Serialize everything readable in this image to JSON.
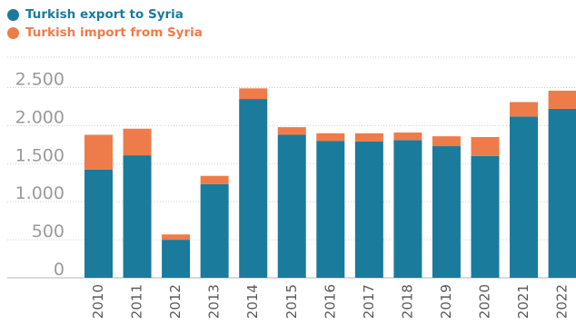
{
  "chart_data": {
    "type": "bar",
    "stacked": true,
    "categories": [
      "2010",
      "2011",
      "2012",
      "2013",
      "2014",
      "2015",
      "2016",
      "2017",
      "2018",
      "2019",
      "2020",
      "2021",
      "2022"
    ],
    "series": [
      {
        "name": "Turkish export to Syria",
        "color": "#1a7b9c",
        "values": [
          1420,
          1610,
          500,
          1230,
          2350,
          1880,
          1800,
          1790,
          1810,
          1730,
          1600,
          2120,
          2220
        ]
      },
      {
        "name": "Turkish import from Syria",
        "color": "#ee7c4a",
        "values": [
          460,
          350,
          70,
          110,
          140,
          100,
          100,
          110,
          100,
          130,
          250,
          190,
          240
        ]
      }
    ],
    "yticks": [
      0,
      500,
      1000,
      1500,
      2000,
      2500
    ],
    "ytick_labels": [
      "0",
      "500",
      "1.000",
      "1.500",
      "2.000",
      "2.500"
    ],
    "ylim": [
      0,
      2900
    ],
    "grid": true,
    "legend_position": "top-left"
  }
}
